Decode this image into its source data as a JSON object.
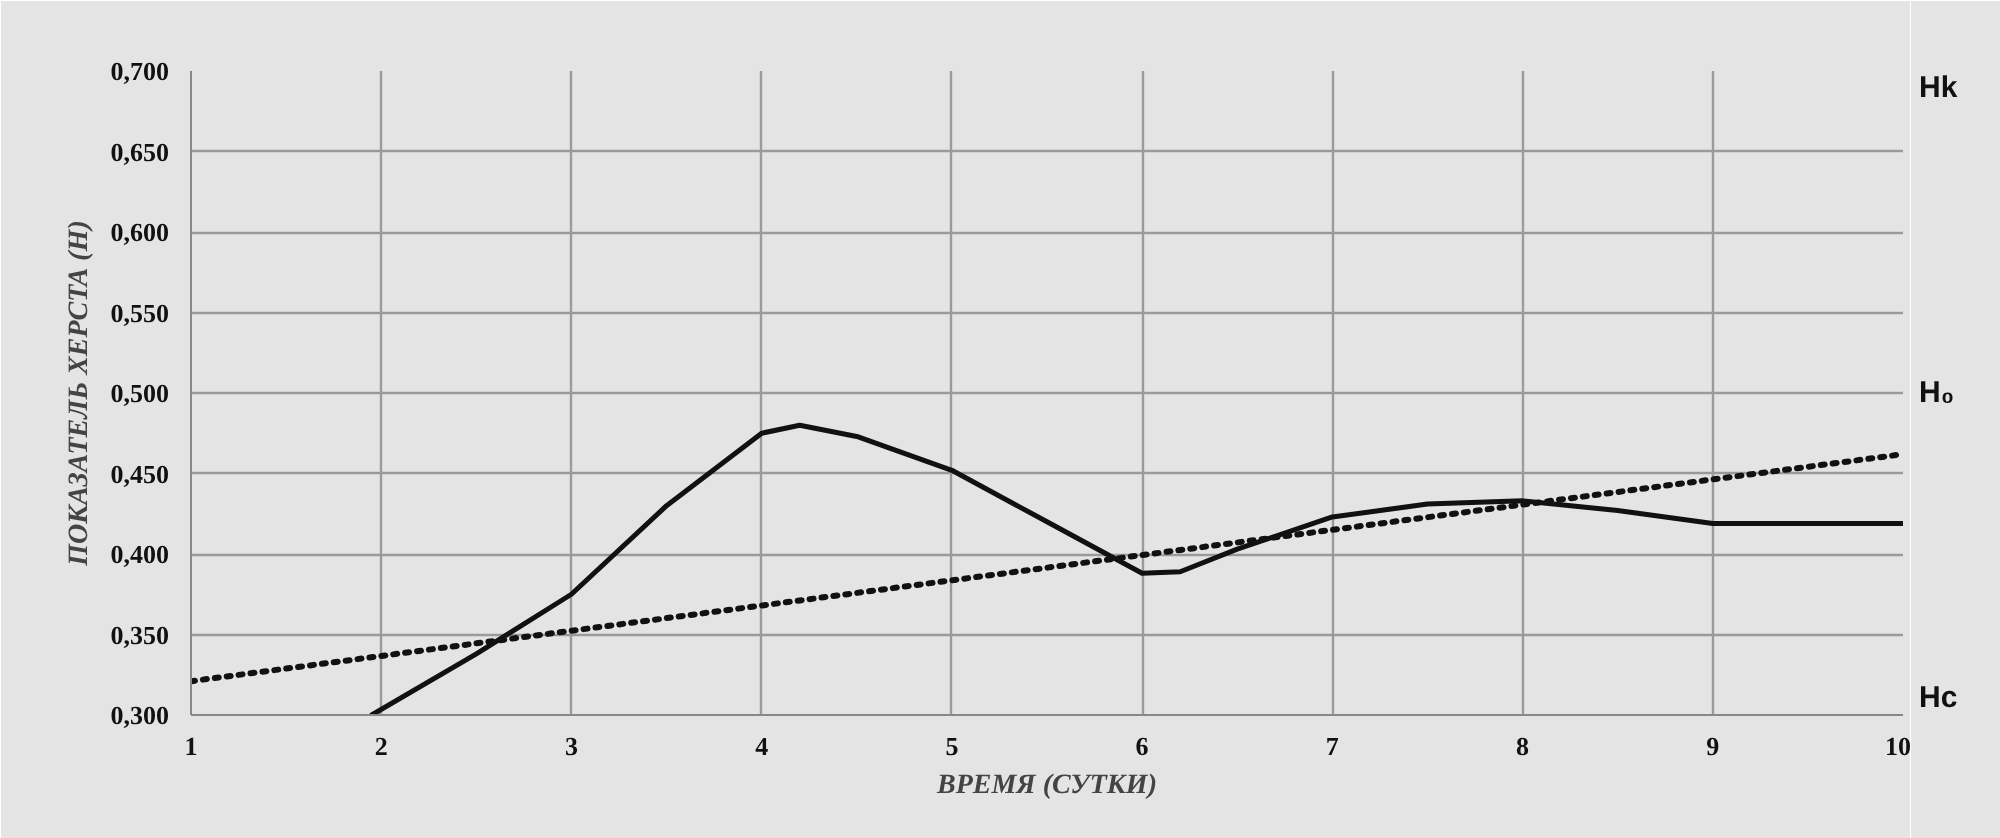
{
  "chart_data": {
    "type": "line",
    "xlabel": "ВРЕМЯ (СУТКИ)",
    "ylabel": "ПОКАЗАТЕЛЬ ХЕРСТА (H)",
    "xlim": [
      1,
      10
    ],
    "xticks": [
      1,
      2,
      3,
      4,
      5,
      6,
      7,
      8,
      9,
      10
    ],
    "ylim": [
      0.3,
      0.7
    ],
    "yticks": [
      {
        "value": 0.3,
        "label": "0,300"
      },
      {
        "value": 0.35,
        "label": "0,350"
      },
      {
        "value": 0.4,
        "label": "0,400"
      },
      {
        "value": 0.45,
        "label": "0,450"
      },
      {
        "value": 0.5,
        "label": "0,500"
      },
      {
        "value": 0.55,
        "label": "0,550"
      },
      {
        "value": 0.6,
        "label": "0,600"
      },
      {
        "value": 0.65,
        "label": "0,650"
      },
      {
        "value": 0.7,
        "label": "0,700"
      }
    ],
    "grid": true,
    "series": [
      {
        "color": "#111111",
        "line_style": "solid",
        "x": [
          1.95,
          2.5,
          3,
          3.5,
          4,
          4.2,
          4.5,
          5,
          5.5,
          6,
          6.2,
          6.5,
          7,
          7.5,
          8,
          8.5,
          9,
          9.5,
          10
        ],
        "values": [
          0.3,
          0.338,
          0.375,
          0.43,
          0.475,
          0.48,
          0.473,
          0.452,
          0.42,
          0.388,
          0.389,
          0.403,
          0.423,
          0.431,
          0.433,
          0.427,
          0.419,
          0.419,
          0.419
        ]
      },
      {
        "color": "#111111",
        "line_style": "dotted",
        "x": [
          1,
          10
        ],
        "values": [
          0.321,
          0.462
        ]
      }
    ],
    "annotations": [
      "Hk",
      "H₀",
      "Hc"
    ]
  }
}
